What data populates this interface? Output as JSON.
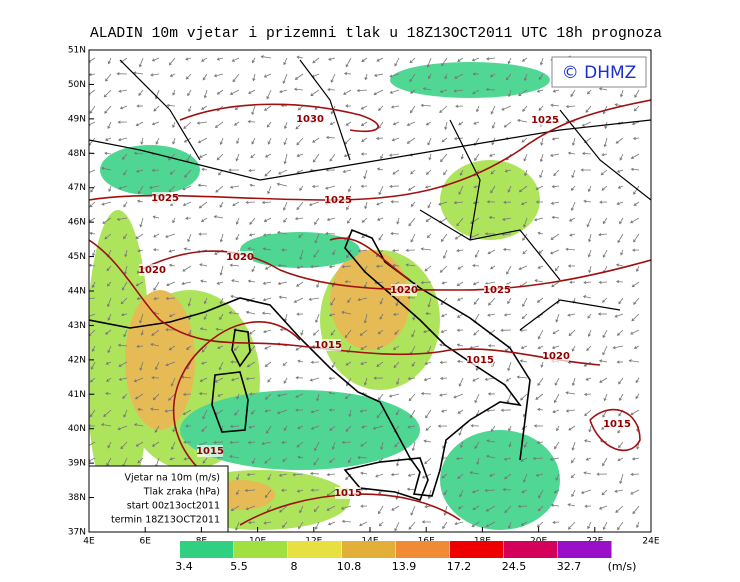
{
  "header": {
    "title": "ALADIN 10m vjetar i prizemni tlak u 18Z13OCT2011 UTC 18h prognoza",
    "logo": "© DHMZ"
  },
  "map": {
    "lat_labels": [
      "51N",
      "50N",
      "49N",
      "48N",
      "47N",
      "46N",
      "45N",
      "44N",
      "43N",
      "42N",
      "41N",
      "40N",
      "39N",
      "38N",
      "37N"
    ],
    "lon_labels": [
      "4E",
      "6E",
      "8E",
      "10E",
      "12E",
      "14E",
      "16E",
      "18E",
      "20E",
      "22E",
      "24E"
    ],
    "isobar_labels": [
      "1030",
      "1025",
      "1025",
      "1025",
      "1020",
      "1020",
      "1020",
      "1025",
      "1015",
      "1015",
      "1020",
      "1015",
      "1015",
      "1015"
    ]
  },
  "info_box": [
    "Vjetar na 10m (m/s)",
    "Tlak zraka (hPa)",
    "start 00z13oct2011",
    "termin 18Z13OCT2011"
  ],
  "colorbar": {
    "levels": [
      "3.4",
      "5.5",
      "8",
      "10.8",
      "13.9",
      "17.2",
      "24.5",
      "32.7"
    ],
    "unit": "(m/s)",
    "colors": [
      "#30d080",
      "#a0e040",
      "#e6e040",
      "#e2b038",
      "#f08a34",
      "#ee0000",
      "#d4005a",
      "#9a10c8"
    ]
  }
}
